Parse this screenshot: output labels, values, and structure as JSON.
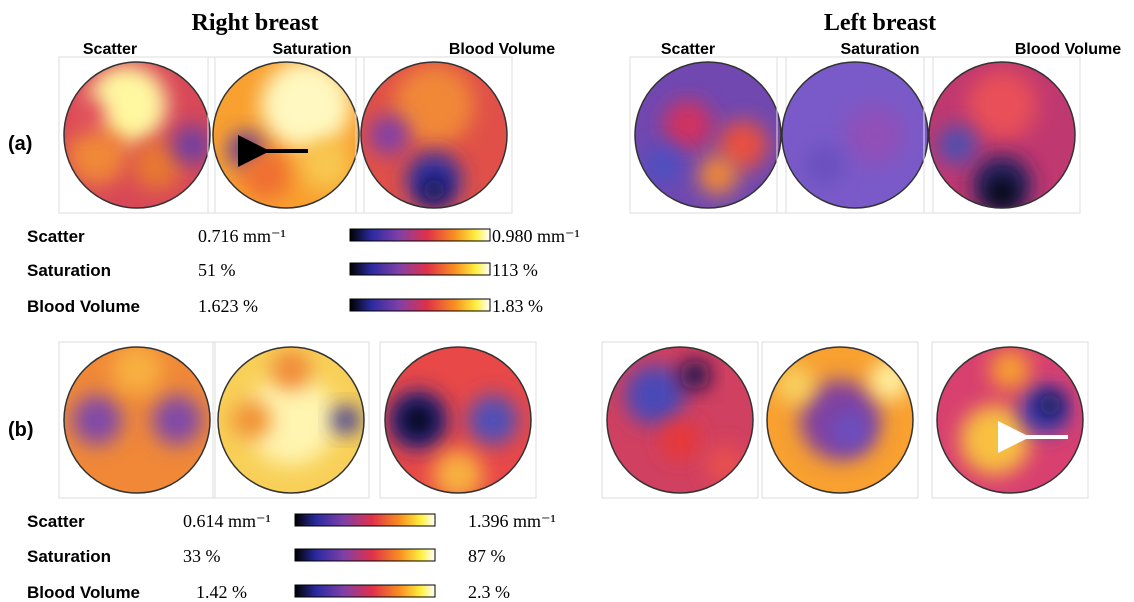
{
  "headers": {
    "right": "Right breast",
    "left": "Left breast"
  },
  "columns": [
    "Scatter",
    "Saturation",
    "Blood Volume",
    "Scatter",
    "Saturation",
    "Blood Volume"
  ],
  "rows": [
    {
      "label": "(a)",
      "scales": [
        {
          "name": "Scatter",
          "min": "0.716 mm⁻¹",
          "max": "0.980 mm⁻¹"
        },
        {
          "name": "Saturation",
          "min": "51 %",
          "max": "113 %"
        },
        {
          "name": "Blood Volume",
          "min": "1.623 %",
          "max": "1.83 %"
        }
      ]
    },
    {
      "label": "(b)",
      "scales": [
        {
          "name": "Scatter",
          "min": "0.614 mm⁻¹",
          "max": "1.396 mm⁻¹"
        },
        {
          "name": "Saturation",
          "min": "33 %",
          "max": "87 %"
        },
        {
          "name": "Blood Volume",
          "min": "1.42 %",
          "max": "2.3 %"
        }
      ]
    }
  ]
}
